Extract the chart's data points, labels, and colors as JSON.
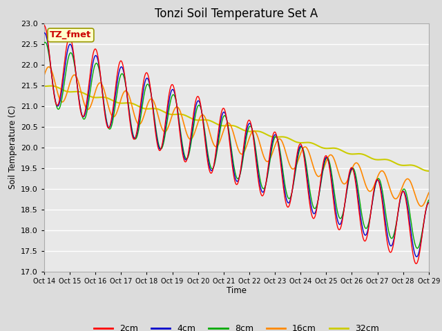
{
  "title": "Tonzi Soil Temperature Set A",
  "xlabel": "Time",
  "ylabel": "Soil Temperature (C)",
  "ylim": [
    17.0,
    23.0
  ],
  "yticks": [
    17.0,
    17.5,
    18.0,
    18.5,
    19.0,
    19.5,
    20.0,
    20.5,
    21.0,
    21.5,
    22.0,
    22.5,
    23.0
  ],
  "xtick_labels": [
    "Oct 14",
    "Oct 15",
    "Oct 16",
    "Oct 17",
    "Oct 18",
    "Oct 19",
    "Oct 20",
    "Oct 21",
    "Oct 22",
    "Oct 23",
    "Oct 24",
    "Oct 25",
    "Oct 26",
    "Oct 27",
    "Oct 28",
    "Oct 29"
  ],
  "colors": {
    "2cm": "#FF0000",
    "4cm": "#0000CC",
    "8cm": "#00AA00",
    "16cm": "#FF8800",
    "32cm": "#CCCC00"
  },
  "legend_labels": [
    "2cm",
    "4cm",
    "8cm",
    "16cm",
    "32cm"
  ],
  "annotation": "TZ_fmet",
  "annotation_bg": "#FFFFCC",
  "annotation_border": "#999900",
  "fig_bg": "#DCDCDC",
  "plot_bg": "#E8E8E8",
  "grid_color": "#FFFFFF",
  "title_fontsize": 12
}
